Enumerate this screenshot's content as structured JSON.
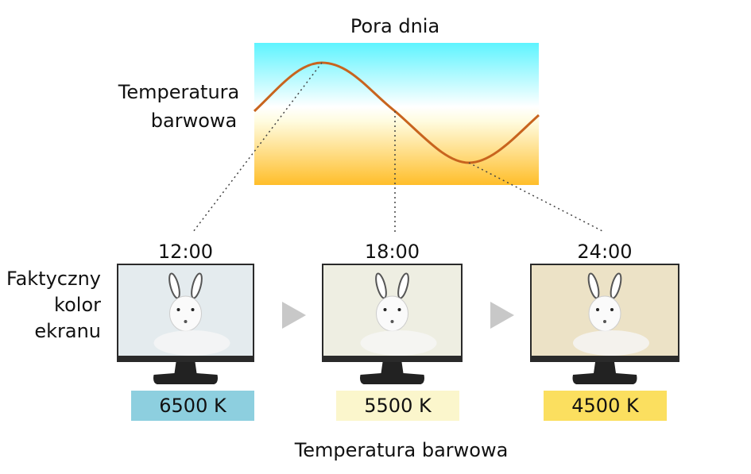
{
  "title": "Pora dnia",
  "y_label": [
    "Temperatura",
    "barwowa"
  ],
  "row_label": [
    "Faktyczny",
    "kolor",
    "ekranu"
  ],
  "monitors": [
    {
      "time": "12:00",
      "temperature": "6500 K"
    },
    {
      "time": "18:00",
      "temperature": "5500 K"
    },
    {
      "time": "24:00",
      "temperature": "4500 K"
    }
  ],
  "caption": "Temperatura barwowa"
}
